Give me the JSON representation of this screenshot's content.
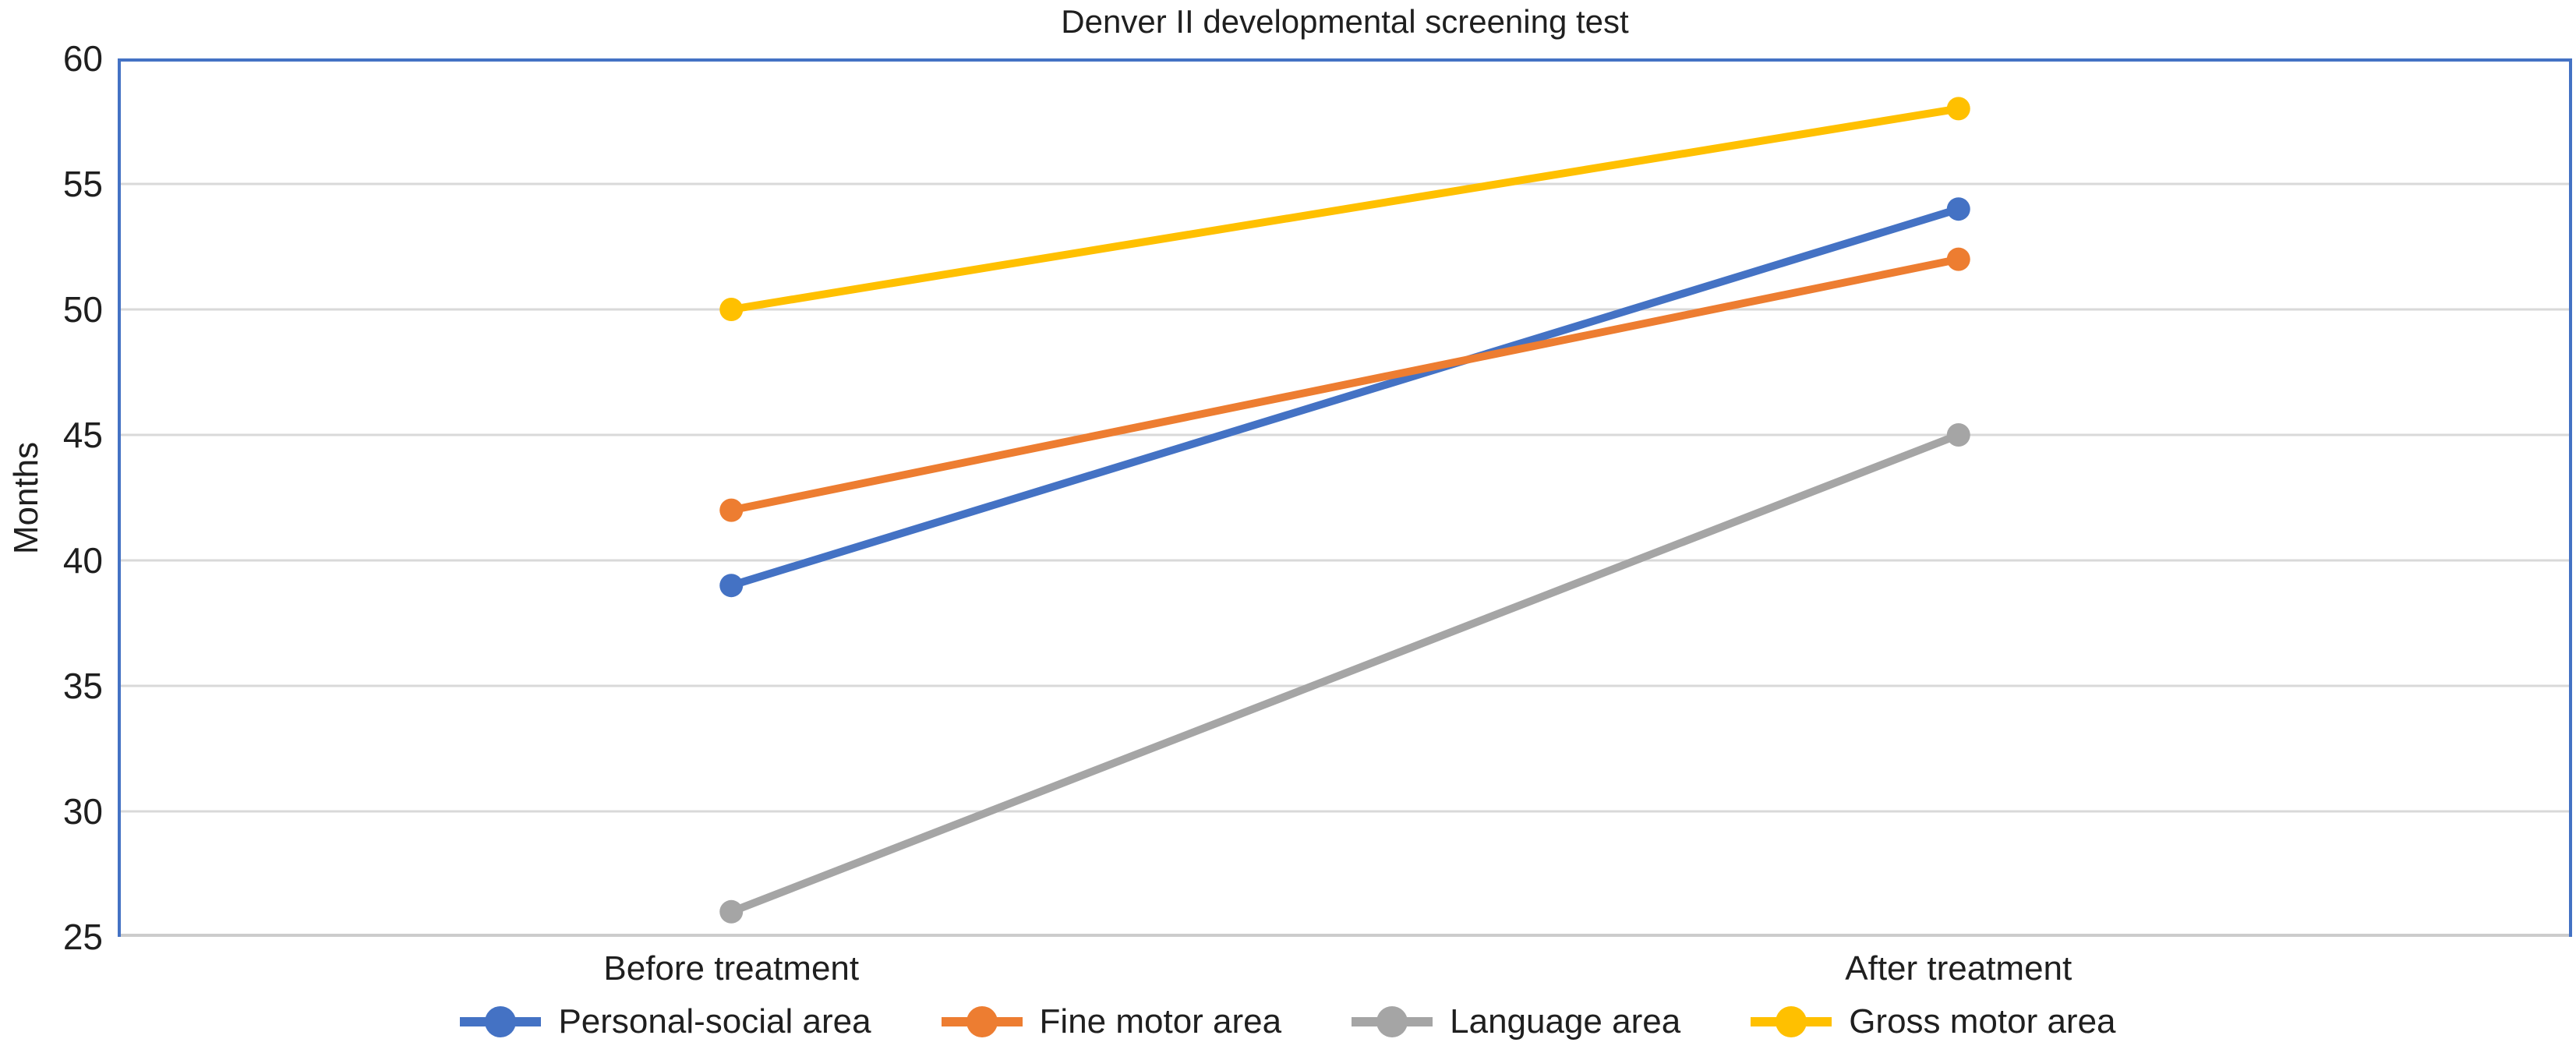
{
  "colors": {
    "plot_border": "#4472C4",
    "gridline": "#D9D9D9",
    "x_axis_line": "#CCCCCC",
    "text": "#1F1F1F",
    "background": "#FFFFFF"
  },
  "chart_data": {
    "type": "line",
    "title": "Denver II developmental screening test",
    "categories": [
      "Before treatment",
      "After treatment"
    ],
    "series": [
      {
        "name": "Personal-social area",
        "color": "#4472C4",
        "values": [
          39,
          54
        ]
      },
      {
        "name": "Fine motor area",
        "color": "#ED7D31",
        "values": [
          42,
          52
        ]
      },
      {
        "name": "Language area",
        "color": "#A5A5A5",
        "values": [
          26,
          45
        ]
      },
      {
        "name": "Gross motor area",
        "color": "#FFC000",
        "values": [
          50,
          58
        ]
      }
    ],
    "xlabel": "",
    "ylabel": "Months",
    "ylim": [
      25,
      60
    ],
    "ytick_step": 5,
    "yticks": [
      25,
      30,
      35,
      40,
      45,
      50,
      55,
      60
    ],
    "grid": true,
    "legend_position": "bottom",
    "marker": "circle"
  }
}
